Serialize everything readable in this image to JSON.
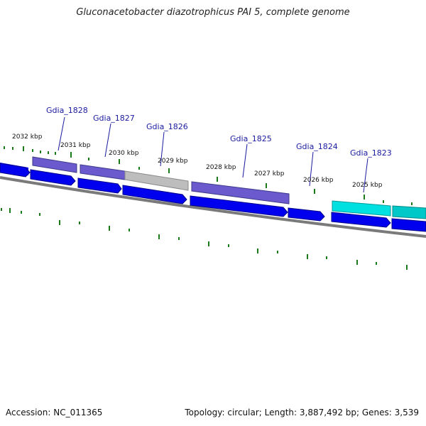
{
  "title": "Gluconacetobacter diazotrophicus PAI 5, complete genome",
  "footer": {
    "accession": "Accession: NC_011365",
    "summary": "Topology: circular; Length: 3,887,492 bp; Genes: 3,539"
  },
  "colors": {
    "cds_forward": "#0000ee",
    "gene_purple": "#6a5acd",
    "gene_gray": "#b0b0b0",
    "gene_cyan": "#00d8d8",
    "backbone": "#777777",
    "ticks": "#1a7a1a",
    "label": "#1a1aa0"
  },
  "genes": [
    {
      "name": "Gdia_1828"
    },
    {
      "name": "Gdia_1827"
    },
    {
      "name": "Gdia_1826"
    },
    {
      "name": "Gdia_1825"
    },
    {
      "name": "Gdia_1824"
    },
    {
      "name": "Gdia_1823"
    }
  ],
  "kbp_labels": [
    "2032 kbp",
    "2031 kbp",
    "2030 kbp",
    "2029 kbp",
    "2028 kbp",
    "2027 kbp",
    "2026 kbp",
    "2025 kbp"
  ]
}
